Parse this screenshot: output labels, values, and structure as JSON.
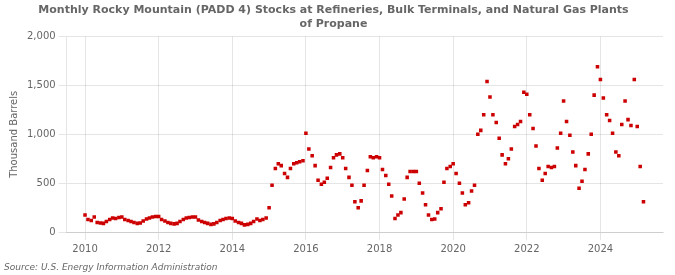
{
  "chart_data": {
    "type": "scatter",
    "title": "Monthly Rocky Mountain (PADD 4) Stocks at Refineries, Bulk Terminals, and Natural Gas Plants\nof Propane",
    "ylabel": "Thousand Barrels",
    "annotation": "Source: U.S. Energy Information Administration",
    "color": "#cc0000",
    "marker": "square",
    "grid": true,
    "xlim": [
      2009.5,
      2025.7
    ],
    "xticks": [
      2010,
      2012,
      2014,
      2016,
      2018,
      2020,
      2022,
      2024
    ],
    "ylim": [
      0,
      2000
    ],
    "yticks": [
      0,
      500,
      {
        "value": 1000,
        "label": "1,000"
      },
      {
        "value": 1500,
        "label": "1,500"
      },
      {
        "value": 2000,
        "label": "2,000"
      }
    ],
    "x": [
      2010.0,
      2010.08,
      2010.17,
      2010.25,
      2010.33,
      2010.42,
      2010.5,
      2010.58,
      2010.67,
      2010.75,
      2010.83,
      2010.92,
      2011.0,
      2011.08,
      2011.17,
      2011.25,
      2011.33,
      2011.42,
      2011.5,
      2011.58,
      2011.67,
      2011.75,
      2011.83,
      2011.92,
      2012.0,
      2012.08,
      2012.17,
      2012.25,
      2012.33,
      2012.42,
      2012.5,
      2012.58,
      2012.67,
      2012.75,
      2012.83,
      2012.92,
      2013.0,
      2013.08,
      2013.17,
      2013.25,
      2013.33,
      2013.42,
      2013.5,
      2013.58,
      2013.67,
      2013.75,
      2013.83,
      2013.92,
      2014.0,
      2014.08,
      2014.17,
      2014.25,
      2014.33,
      2014.42,
      2014.5,
      2014.58,
      2014.67,
      2014.75,
      2014.83,
      2014.92,
      2015.0,
      2015.08,
      2015.17,
      2015.25,
      2015.33,
      2015.42,
      2015.5,
      2015.58,
      2015.67,
      2015.75,
      2015.83,
      2015.92,
      2016.0,
      2016.08,
      2016.17,
      2016.25,
      2016.33,
      2016.42,
      2016.5,
      2016.58,
      2016.67,
      2016.75,
      2016.83,
      2016.92,
      2017.0,
      2017.08,
      2017.17,
      2017.25,
      2017.33,
      2017.42,
      2017.5,
      2017.58,
      2017.67,
      2017.75,
      2017.83,
      2017.92,
      2018.0,
      2018.08,
      2018.17,
      2018.25,
      2018.33,
      2018.42,
      2018.5,
      2018.58,
      2018.67,
      2018.75,
      2018.83,
      2018.92,
      2019.0,
      2019.08,
      2019.17,
      2019.25,
      2019.33,
      2019.42,
      2019.5,
      2019.58,
      2019.67,
      2019.75,
      2019.83,
      2019.92,
      2020.0,
      2020.08,
      2020.17,
      2020.25,
      2020.33,
      2020.42,
      2020.5,
      2020.58,
      2020.67,
      2020.75,
      2020.83,
      2020.92,
      2021.0,
      2021.08,
      2021.17,
      2021.25,
      2021.33,
      2021.42,
      2021.5,
      2021.58,
      2021.67,
      2021.75,
      2021.83,
      2021.92,
      2022.0,
      2022.08,
      2022.17,
      2022.25,
      2022.33,
      2022.42,
      2022.5,
      2022.58,
      2022.67,
      2022.75,
      2022.83,
      2022.92,
      2023.0,
      2023.08,
      2023.17,
      2023.25,
      2023.33,
      2023.42,
      2023.5,
      2023.58,
      2023.67,
      2023.75,
      2023.83,
      2023.92,
      2024.0,
      2024.08,
      2024.17,
      2024.25,
      2024.33,
      2024.42,
      2024.5,
      2024.58,
      2024.67,
      2024.75,
      2024.83,
      2024.92,
      2025.0,
      2025.08,
      2025.17
    ],
    "values": [
      175,
      130,
      120,
      155,
      100,
      95,
      90,
      110,
      130,
      145,
      140,
      150,
      155,
      130,
      120,
      110,
      100,
      90,
      95,
      115,
      135,
      145,
      155,
      160,
      160,
      130,
      115,
      100,
      90,
      85,
      90,
      110,
      130,
      145,
      150,
      155,
      155,
      125,
      110,
      100,
      90,
      80,
      85,
      100,
      120,
      130,
      140,
      145,
      140,
      115,
      100,
      90,
      75,
      80,
      90,
      110,
      135,
      120,
      130,
      145,
      250,
      480,
      650,
      700,
      680,
      600,
      560,
      650,
      700,
      710,
      720,
      730,
      1010,
      850,
      780,
      680,
      530,
      490,
      510,
      550,
      660,
      760,
      790,
      800,
      760,
      650,
      560,
      480,
      310,
      250,
      320,
      480,
      630,
      770,
      760,
      770,
      760,
      640,
      580,
      490,
      370,
      140,
      175,
      200,
      340,
      560,
      620,
      620,
      620,
      500,
      400,
      280,
      175,
      130,
      135,
      200,
      240,
      510,
      650,
      670,
      700,
      600,
      500,
      400,
      280,
      300,
      420,
      480,
      1000,
      1040,
      1200,
      1540,
      1380,
      1200,
      1120,
      960,
      790,
      700,
      750,
      850,
      1080,
      1100,
      1130,
      1430,
      1410,
      1200,
      1060,
      880,
      650,
      530,
      600,
      670,
      660,
      670,
      860,
      1010,
      1340,
      1130,
      990,
      820,
      680,
      450,
      520,
      640,
      800,
      1000,
      1400,
      1690,
      1560,
      1370,
      1200,
      1140,
      1010,
      820,
      780,
      1100,
      1340,
      1150,
      1090,
      1560,
      1080,
      670,
      310
    ]
  }
}
